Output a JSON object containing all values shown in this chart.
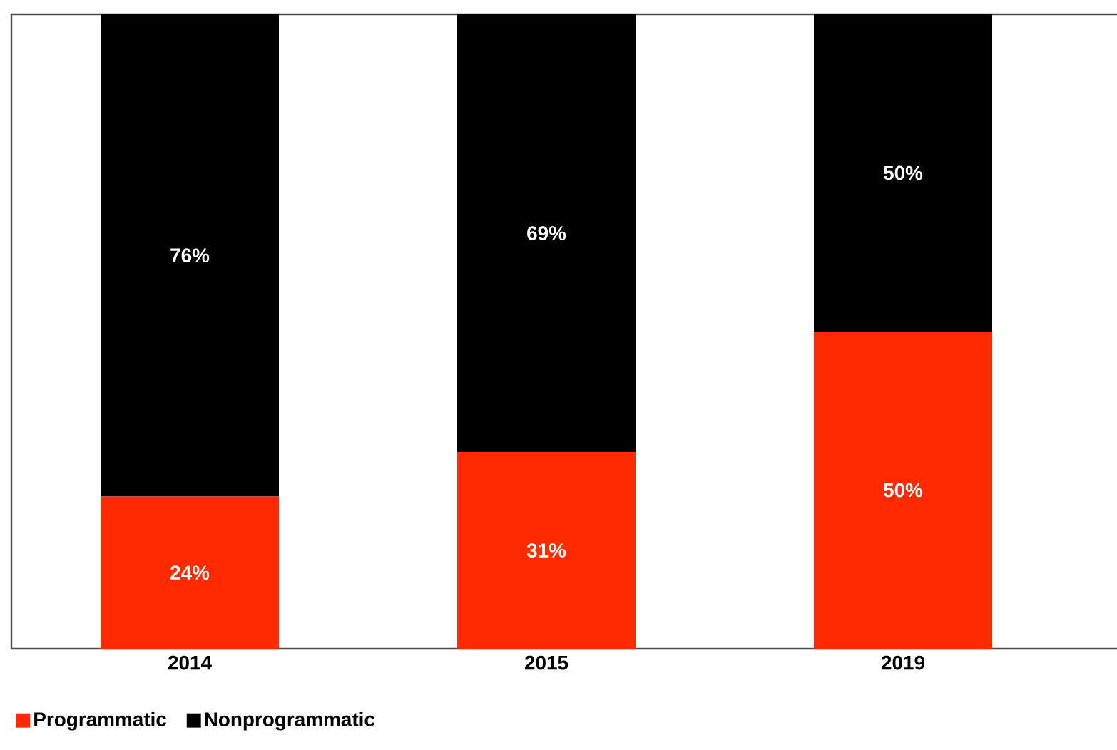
{
  "chart_data": {
    "type": "bar",
    "stacked": true,
    "categories": [
      "2014",
      "2015",
      "2019"
    ],
    "series": [
      {
        "name": "Programmatic",
        "color": "#ff2a00",
        "values": [
          24,
          31,
          50
        ],
        "value_labels": [
          "24%",
          "31%",
          "50%"
        ]
      },
      {
        "name": "Nonprogrammatic",
        "color": "#000000",
        "values": [
          76,
          69,
          50
        ],
        "value_labels": [
          "76%",
          "69%",
          "50%"
        ]
      }
    ],
    "legend": "bottom left"
  }
}
